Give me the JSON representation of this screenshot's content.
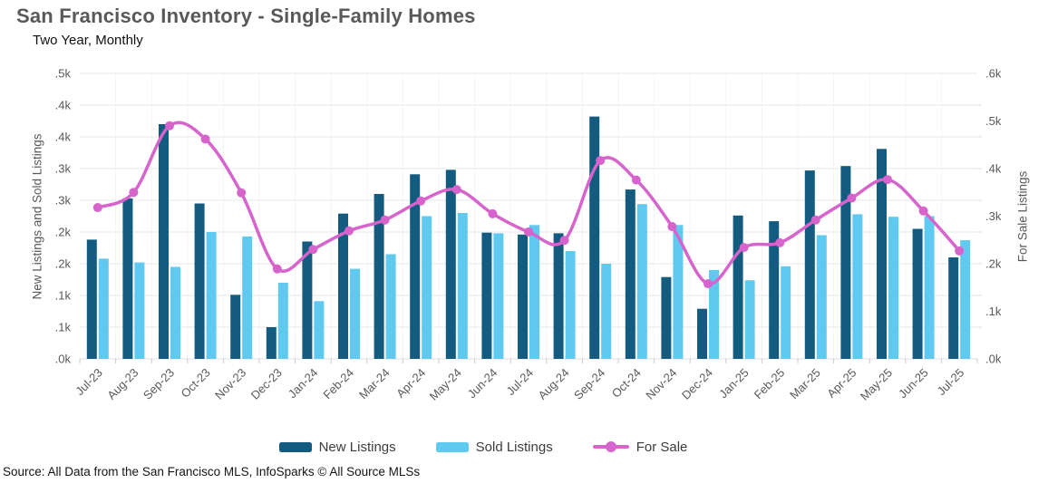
{
  "header": {
    "title": "San Francisco Inventory - Single-Family Homes",
    "subtitle": "Two Year, Monthly"
  },
  "source_note": "Source: All Data from the San Francisco MLS, InfoSparks © All Source MLSs",
  "colors": {
    "new_listings": "#135C80",
    "sold_listings": "#5FC9F0",
    "for_sale": "#D763CC",
    "grid": "#E7E7E7",
    "grid_vertical": "#F4F4F4",
    "axis_line": "#DEDEDE",
    "tick": "#C9C9C9",
    "axis_text": "#595959",
    "title_text": "#58595B"
  },
  "chart_data": {
    "type": "combo (grouped bars + smoothed line, dual y-axis)",
    "title": "San Francisco Inventory - Single-Family Homes",
    "subtitle": "Two Year, Monthly",
    "grid": true,
    "legend_position": "bottom",
    "categories": [
      "Jul-23",
      "Aug-23",
      "Sep-23",
      "Oct-23",
      "Nov-23",
      "Dec-23",
      "Jan-24",
      "Feb-24",
      "Mar-24",
      "Apr-24",
      "May-24",
      "Jun-24",
      "Jul-24",
      "Aug-24",
      "Sep-24",
      "Oct-24",
      "Nov-24",
      "Dec-24",
      "Jan-25",
      "Feb-25",
      "Mar-25",
      "Apr-25",
      "May-25",
      "Jun-25",
      "Jul-25"
    ],
    "series": [
      {
        "name": "New Listings",
        "kind": "bar",
        "axis": "left",
        "values": [
          188,
          253,
          370,
          245,
          101,
          50,
          185,
          229,
          260,
          291,
          298,
          199,
          196,
          198,
          382,
          267,
          129,
          79,
          226,
          217,
          297,
          304,
          331,
          205,
          160
        ]
      },
      {
        "name": "Sold Listings",
        "kind": "bar",
        "axis": "left",
        "values": [
          158,
          152,
          145,
          200,
          193,
          120,
          91,
          142,
          165,
          225,
          230,
          198,
          211,
          170,
          150,
          244,
          211,
          140,
          124,
          146,
          195,
          228,
          224,
          225,
          187
        ]
      },
      {
        "name": "For Sale",
        "kind": "line",
        "axis": "right",
        "values": [
          318,
          350,
          490,
          462,
          349,
          189,
          230,
          269,
          292,
          332,
          356,
          305,
          267,
          249,
          417,
          376,
          278,
          158,
          234,
          244,
          292,
          338,
          377,
          311,
          227
        ]
      }
    ],
    "left_axis": {
      "title": "New Listings and Sold Listings",
      "min": 0,
      "max": 450,
      "tick_step": 50,
      "tick_labels": [
        ".0k",
        ".1k",
        ".1k",
        ".2k",
        ".2k",
        ".3k",
        ".3k",
        ".4k",
        ".4k",
        ".5k"
      ]
    },
    "right_axis": {
      "title": "For Sale Listings",
      "min": 0,
      "max": 600,
      "tick_step": 100,
      "tick_labels": [
        ".0k",
        ".1k",
        ".2k",
        ".3k",
        ".4k",
        ".5k",
        ".6k"
      ]
    }
  }
}
